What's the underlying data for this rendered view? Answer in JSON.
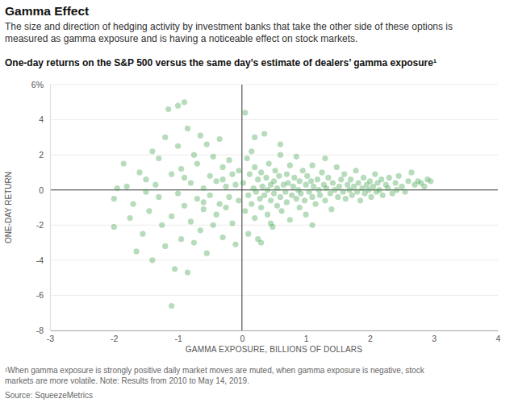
{
  "chart_data": {
    "type": "scatter",
    "title": "Gamma Effect",
    "subtitle": [
      "The size and direction of hedging activity by investment banks that take the other side of these options is",
      "measured as gamma exposure and is having a noticeable effect on stock markets."
    ],
    "heading": "One-day returns on the S&P 500 versus the same day’s estimate of dealers’ gamma exposure¹",
    "x_label": "GAMMA EXPOSURE, BILLIONS OF DOLLARS",
    "y_label": "ONE-DAY RETURN",
    "footnote": [
      "¹When gamma exposure is strongly positive daily market moves are muted, when gamma exposure is negative, stock",
      "markets are more volatile. Note: Results from 2010 to May 14, 2019."
    ],
    "source": "Source: SqueezeMetrics",
    "color": "#3fa34d",
    "marker": "circle",
    "grid": true,
    "xlim": [
      -3,
      4
    ],
    "xticks": [
      -3,
      -2,
      -1,
      0,
      1,
      2,
      3,
      4
    ],
    "ylim": [
      -8,
      6
    ],
    "yticks": [
      {
        "value": 6,
        "label": "6%"
      },
      4,
      2,
      0,
      -2,
      -4,
      -6,
      -8
    ],
    "x": [
      -2.0,
      -2.0,
      -1.95,
      -1.85,
      -1.8,
      -1.75,
      -1.7,
      -1.65,
      -1.6,
      -1.55,
      -1.5,
      -1.45,
      -1.4,
      -1.4,
      -1.35,
      -1.3,
      -1.3,
      -1.25,
      -1.2,
      -1.2,
      -1.15,
      -1.1,
      -1.1,
      -1.1,
      -1.05,
      -1.0,
      -1.0,
      -1.0,
      -0.95,
      -0.95,
      -0.9,
      -0.9,
      -0.85,
      -0.85,
      -0.8,
      -0.8,
      -0.75,
      -0.75,
      -0.7,
      -0.7,
      -0.65,
      -0.65,
      -0.6,
      -0.6,
      -0.55,
      -0.55,
      -0.5,
      -0.5,
      -0.45,
      -0.45,
      -0.4,
      -0.4,
      -0.35,
      -0.35,
      -0.3,
      -0.3,
      -0.25,
      -0.25,
      -0.2,
      -0.2,
      -0.15,
      -0.15,
      -0.1,
      -0.1,
      -0.05,
      -0.05,
      -1.5,
      -0.9,
      -0.6,
      -0.3,
      0.02,
      0.05,
      0.05,
      0.08,
      0.1,
      0.1,
      0.12,
      0.15,
      0.15,
      0.18,
      0.2,
      0.2,
      0.22,
      0.25,
      0.25,
      0.28,
      0.3,
      0.3,
      0.32,
      0.35,
      0.35,
      0.38,
      0.4,
      0.4,
      0.42,
      0.45,
      0.45,
      0.48,
      0.5,
      0.5,
      0.52,
      0.55,
      0.55,
      0.58,
      0.6,
      0.6,
      0.62,
      0.65,
      0.68,
      0.7,
      0.7,
      0.72,
      0.75,
      0.75,
      0.78,
      0.8,
      0.82,
      0.85,
      0.85,
      0.88,
      0.9,
      0.9,
      0.92,
      0.95,
      0.98,
      1.0,
      1.0,
      1.02,
      1.05,
      1.08,
      1.1,
      1.1,
      1.12,
      1.15,
      1.18,
      1.2,
      1.22,
      1.25,
      1.28,
      1.3,
      1.32,
      1.35,
      1.38,
      1.4,
      1.42,
      1.45,
      1.48,
      1.5,
      1.52,
      1.55,
      1.58,
      1.6,
      1.62,
      1.65,
      1.68,
      1.7,
      1.72,
      1.75,
      1.78,
      1.8,
      1.82,
      1.85,
      1.88,
      1.9,
      1.92,
      1.95,
      1.98,
      2.0,
      2.02,
      2.05,
      2.08,
      2.1,
      2.12,
      2.15,
      2.18,
      2.2,
      2.25,
      2.28,
      2.3,
      2.35,
      2.4,
      2.42,
      2.45,
      2.5,
      2.55,
      2.6,
      2.65,
      2.7,
      2.75,
      2.8,
      2.85,
      2.9,
      2.95,
      0.3,
      0.45,
      1.1,
      0.6,
      1.3,
      0.2
    ],
    "values": [
      -0.5,
      -2.1,
      0.1,
      1.5,
      0.2,
      -1.6,
      -0.8,
      -3.5,
      1.0,
      -2.5,
      0.6,
      -1.2,
      2.2,
      -4.0,
      0.3,
      -0.4,
      1.8,
      -2.0,
      3.0,
      -3.2,
      4.6,
      -6.6,
      0.9,
      -1.5,
      -4.5,
      4.8,
      -0.2,
      2.5,
      -2.8,
      1.2,
      5.0,
      -0.9,
      -4.7,
      3.5,
      0.4,
      -1.8,
      2.0,
      -3.0,
      -0.5,
      1.5,
      3.1,
      -2.3,
      0.1,
      -1.1,
      2.6,
      -3.6,
      0.8,
      -0.3,
      1.9,
      -2.0,
      -1.4,
      0.5,
      2.9,
      -0.8,
      1.3,
      -2.7,
      0.2,
      -1.0,
      1.7,
      -0.4,
      -1.9,
      0.9,
      0.3,
      -3.1,
      1.1,
      -0.6,
      -0.1,
      0.7,
      -0.7,
      0.6,
      0.4,
      -1.2,
      4.4,
      1.8,
      -0.3,
      -2.5,
      0.9,
      -0.8,
      2.2,
      0.1,
      -1.6,
      1.3,
      -0.1,
      0.6,
      -2.8,
      -0.5,
      1.0,
      -1.0,
      0.2,
      3.2,
      -0.3,
      0.7,
      -1.4,
      0.0,
      1.5,
      -0.6,
      0.3,
      -2.1,
      0.5,
      -0.2,
      1.1,
      -0.9,
      0.1,
      0.8,
      -0.4,
      2.0,
      -1.2,
      0.3,
      -0.1,
      0.9,
      -0.7,
      0.4,
      -1.7,
      1.4,
      -0.3,
      0.2,
      0.7,
      -0.5,
      1.9,
      0.0,
      -1.0,
      0.5,
      -0.2,
      1.1,
      -0.6,
      0.3,
      -1.4,
      0.8,
      -0.1,
      0.5,
      -0.4,
      1.4,
      0.2,
      -0.8,
      0.6,
      0.0,
      -0.3,
      1.0,
      0.3,
      -0.6,
      0.1,
      0.7,
      -0.2,
      -1.1,
      0.4,
      0.0,
      1.3,
      -0.4,
      0.2,
      0.6,
      -0.1,
      0.9,
      -0.5,
      0.3,
      0.0,
      0.6,
      -0.3,
      0.2,
      1.1,
      -0.1,
      0.4,
      -0.6,
      0.1,
      0.7,
      -0.2,
      0.3,
      0.0,
      0.5,
      -0.4,
      0.2,
      0.9,
      -0.1,
      0.4,
      0.0,
      0.6,
      -0.3,
      0.3,
      0.1,
      0.7,
      -0.2,
      0.4,
      0.0,
      0.8,
      0.2,
      -0.1,
      0.5,
      1.0,
      0.3,
      0.5,
      0.4,
      0.2,
      0.6,
      0.5,
      -3.0,
      -1.9,
      -2.0,
      2.6,
      1.8,
      3.0
    ]
  }
}
